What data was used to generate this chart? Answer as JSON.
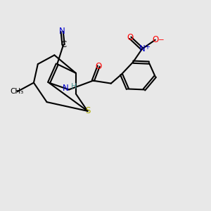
{
  "bg_color": "#e8e8e8",
  "atom_colors": {
    "C": "#000000",
    "N": "#0000cc",
    "S": "#aaaa00",
    "O": "#ff0000",
    "H": "#4a9090"
  },
  "bond_color": "#000000",
  "bond_width": 1.5
}
